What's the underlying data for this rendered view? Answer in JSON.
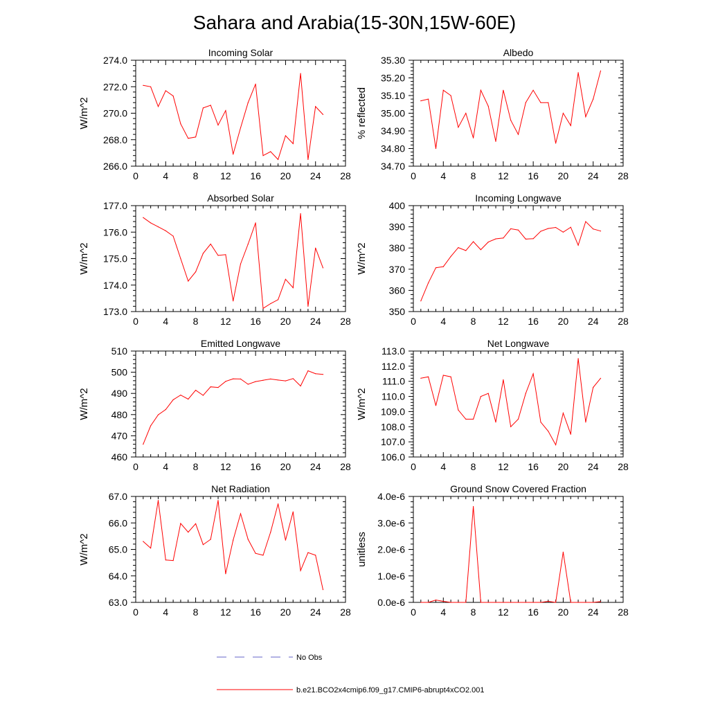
{
  "title": "Sahara and Arabia(15-30N,15W-60E)",
  "colors": {
    "model_line": "#ff0000",
    "obs_line": "#6464c8",
    "axis": "#000000"
  },
  "legend": {
    "obs_label": "No Obs",
    "model_label": "b.e21.BCO2x4cmip6.f09_g17.CMIP6-abrupt4xCO2.001"
  },
  "chart_data": [
    {
      "type": "line",
      "title": "Incoming Solar",
      "ylabel": "W/m^2",
      "xlabel": "",
      "xlim": [
        0,
        28
      ],
      "xticks": [
        0,
        4,
        8,
        12,
        16,
        20,
        24,
        28
      ],
      "xtick_labels": [
        "0",
        "4",
        "8",
        "12",
        "16",
        "20",
        "24",
        "28"
      ],
      "ylim": [
        266.0,
        274.0
      ],
      "yticks": [
        266.0,
        268.0,
        270.0,
        272.0,
        274.0
      ],
      "ytick_labels": [
        "266.0",
        "268.0",
        "270.0",
        "272.0",
        "274.0"
      ],
      "yminor": 4,
      "series": [
        {
          "name": "b.e21.BCO2x4cmip6.f09_g17.CMIP6-abrupt4xCO2.001",
          "x": [
            1,
            2,
            3,
            4,
            5,
            6,
            7,
            8,
            9,
            10,
            11,
            12,
            13,
            14,
            15,
            16,
            17,
            18,
            19,
            20,
            21,
            22,
            23,
            24,
            25
          ],
          "values": [
            272.1,
            272.0,
            270.5,
            271.7,
            271.3,
            269.2,
            268.1,
            268.2,
            270.4,
            270.6,
            269.1,
            270.2,
            266.9,
            268.9,
            270.8,
            272.2,
            266.8,
            267.1,
            266.5,
            268.3,
            267.7,
            273.0,
            266.5,
            270.5,
            269.9
          ]
        }
      ]
    },
    {
      "type": "line",
      "title": "Albedo",
      "ylabel": "% reflected",
      "xlabel": "",
      "xlim": [
        0,
        28
      ],
      "xticks": [
        0,
        4,
        8,
        12,
        16,
        20,
        24,
        28
      ],
      "xtick_labels": [
        "0",
        "4",
        "8",
        "12",
        "16",
        "20",
        "24",
        "28"
      ],
      "ylim": [
        34.7,
        35.3
      ],
      "yticks": [
        34.7,
        34.8,
        34.9,
        35.0,
        35.1,
        35.2,
        35.3
      ],
      "ytick_labels": [
        "34.70",
        "34.80",
        "34.90",
        "35.00",
        "35.10",
        "35.20",
        "35.30"
      ],
      "yminor": 4,
      "series": [
        {
          "name": "b.e21.BCO2x4cmip6.f09_g17.CMIP6-abrupt4xCO2.001",
          "x": [
            1,
            2,
            3,
            4,
            5,
            6,
            7,
            8,
            9,
            10,
            11,
            12,
            13,
            14,
            15,
            16,
            17,
            18,
            19,
            20,
            21,
            22,
            23,
            24,
            25
          ],
          "values": [
            35.07,
            35.08,
            34.8,
            35.13,
            35.1,
            34.92,
            35.0,
            34.86,
            35.13,
            35.04,
            34.84,
            35.13,
            34.96,
            34.88,
            35.06,
            35.13,
            35.06,
            35.06,
            34.83,
            35.0,
            34.93,
            35.23,
            34.98,
            35.08,
            35.24
          ]
        }
      ]
    },
    {
      "type": "line",
      "title": "Absorbed Solar",
      "ylabel": "W/m^2",
      "xlabel": "",
      "xlim": [
        0,
        28
      ],
      "xticks": [
        0,
        4,
        8,
        12,
        16,
        20,
        24,
        28
      ],
      "xtick_labels": [
        "0",
        "4",
        "8",
        "12",
        "16",
        "20",
        "24",
        "28"
      ],
      "ylim": [
        173.0,
        177.0
      ],
      "yticks": [
        173.0,
        174.0,
        175.0,
        176.0,
        177.0
      ],
      "ytick_labels": [
        "173.0",
        "174.0",
        "175.0",
        "176.0",
        "177.0"
      ],
      "yminor": 4,
      "series": [
        {
          "name": "b.e21.BCO2x4cmip6.f09_g17.CMIP6-abrupt4xCO2.001",
          "x": [
            1,
            2,
            3,
            4,
            5,
            6,
            7,
            8,
            9,
            10,
            11,
            12,
            13,
            14,
            15,
            16,
            17,
            18,
            19,
            20,
            21,
            22,
            23,
            24,
            25
          ],
          "values": [
            176.55,
            176.35,
            176.2,
            176.05,
            175.85,
            175.0,
            174.15,
            174.5,
            175.2,
            175.55,
            175.12,
            175.15,
            173.4,
            174.8,
            175.55,
            176.35,
            173.12,
            173.3,
            173.45,
            174.22,
            173.9,
            176.7,
            173.2,
            175.4,
            174.65
          ]
        }
      ]
    },
    {
      "type": "line",
      "title": "Incoming Longwave",
      "ylabel": "W/m^2",
      "xlabel": "",
      "xlim": [
        0,
        28
      ],
      "xticks": [
        0,
        4,
        8,
        12,
        16,
        20,
        24,
        28
      ],
      "xtick_labels": [
        "0",
        "4",
        "8",
        "12",
        "16",
        "20",
        "24",
        "28"
      ],
      "ylim": [
        350,
        400
      ],
      "yticks": [
        350,
        360,
        370,
        380,
        390,
        400
      ],
      "ytick_labels": [
        "350",
        "360",
        "370",
        "380",
        "390",
        "400"
      ],
      "yminor": 4,
      "series": [
        {
          "name": "b.e21.BCO2x4cmip6.f09_g17.CMIP6-abrupt4xCO2.001",
          "x": [
            1,
            2,
            3,
            4,
            5,
            6,
            7,
            8,
            9,
            10,
            11,
            12,
            13,
            14,
            15,
            16,
            17,
            18,
            19,
            20,
            21,
            22,
            23,
            24,
            25
          ],
          "values": [
            355.0,
            363.5,
            370.7,
            371.2,
            376.0,
            380.2,
            378.8,
            383.0,
            379.2,
            382.8,
            384.3,
            384.7,
            389.1,
            388.5,
            384.2,
            384.4,
            387.9,
            389.2,
            389.7,
            387.5,
            389.8,
            381.3,
            392.5,
            389.0,
            388.0
          ]
        }
      ]
    },
    {
      "type": "line",
      "title": "Emitted Longwave",
      "ylabel": "W/m^2",
      "xlabel": "",
      "xlim": [
        0,
        28
      ],
      "xticks": [
        0,
        4,
        8,
        12,
        16,
        20,
        24,
        28
      ],
      "xtick_labels": [
        "0",
        "4",
        "8",
        "12",
        "16",
        "20",
        "24",
        "28"
      ],
      "ylim": [
        460,
        510
      ],
      "yticks": [
        460,
        470,
        480,
        490,
        500,
        510
      ],
      "ytick_labels": [
        "460",
        "470",
        "480",
        "490",
        "500",
        "510"
      ],
      "yminor": 4,
      "series": [
        {
          "name": "b.e21.BCO2x4cmip6.f09_g17.CMIP6-abrupt4xCO2.001",
          "x": [
            1,
            2,
            3,
            4,
            5,
            6,
            7,
            8,
            9,
            10,
            11,
            12,
            13,
            14,
            15,
            16,
            17,
            18,
            19,
            20,
            21,
            22,
            23,
            24,
            25
          ],
          "values": [
            466.0,
            474.7,
            479.9,
            482.4,
            487.0,
            489.2,
            487.3,
            491.5,
            489.1,
            493.1,
            492.8,
            495.7,
            496.9,
            496.8,
            494.3,
            495.6,
            496.2,
            496.8,
            496.3,
            495.9,
            497.0,
            493.5,
            500.7,
            499.3,
            499.0
          ]
        }
      ]
    },
    {
      "type": "line",
      "title": "Net Longwave",
      "ylabel": "W/m^2",
      "xlabel": "",
      "xlim": [
        0,
        28
      ],
      "xticks": [
        0,
        4,
        8,
        12,
        16,
        20,
        24,
        28
      ],
      "xtick_labels": [
        "0",
        "4",
        "8",
        "12",
        "16",
        "20",
        "24",
        "28"
      ],
      "ylim": [
        106.0,
        113.0
      ],
      "yticks": [
        106.0,
        107.0,
        108.0,
        109.0,
        110.0,
        111.0,
        112.0,
        113.0
      ],
      "ytick_labels": [
        "106.0",
        "107.0",
        "108.0",
        "109.0",
        "110.0",
        "111.0",
        "112.0",
        "113.0"
      ],
      "yminor": 4,
      "series": [
        {
          "name": "b.e21.BCO2x4cmip6.f09_g17.CMIP6-abrupt4xCO2.001",
          "x": [
            1,
            2,
            3,
            4,
            5,
            6,
            7,
            8,
            9,
            10,
            11,
            12,
            13,
            14,
            15,
            16,
            17,
            18,
            19,
            20,
            21,
            22,
            23,
            24,
            25
          ],
          "values": [
            111.2,
            111.3,
            109.4,
            111.4,
            111.3,
            109.1,
            108.5,
            108.5,
            110.0,
            110.2,
            108.3,
            111.1,
            108.0,
            108.5,
            110.2,
            111.5,
            108.3,
            107.7,
            106.8,
            108.9,
            107.5,
            112.5,
            108.3,
            110.6,
            111.2
          ]
        }
      ]
    },
    {
      "type": "line",
      "title": "Net Radiation",
      "ylabel": "W/m^2",
      "xlabel": "",
      "xlim": [
        0,
        28
      ],
      "xticks": [
        0,
        4,
        8,
        12,
        16,
        20,
        24,
        28
      ],
      "xtick_labels": [
        "0",
        "4",
        "8",
        "12",
        "16",
        "20",
        "24",
        "28"
      ],
      "ylim": [
        63.0,
        67.0
      ],
      "yticks": [
        63.0,
        64.0,
        65.0,
        66.0,
        67.0
      ],
      "ytick_labels": [
        "63.0",
        "64.0",
        "65.0",
        "66.0",
        "67.0"
      ],
      "yminor": 4,
      "series": [
        {
          "name": "b.e21.BCO2x4cmip6.f09_g17.CMIP6-abrupt4xCO2.001",
          "x": [
            1,
            2,
            3,
            4,
            5,
            6,
            7,
            8,
            9,
            10,
            11,
            12,
            13,
            14,
            15,
            16,
            17,
            18,
            19,
            20,
            21,
            22,
            23,
            24,
            25
          ],
          "values": [
            65.3,
            65.05,
            66.85,
            64.6,
            64.58,
            65.98,
            65.65,
            65.97,
            65.18,
            65.38,
            66.85,
            64.08,
            65.35,
            66.35,
            65.38,
            64.85,
            64.78,
            65.65,
            66.72,
            65.35,
            66.42,
            64.2,
            64.88,
            64.78,
            63.48
          ]
        }
      ]
    },
    {
      "type": "line",
      "title": "Ground Snow Covered Fraction",
      "ylabel": "unitless",
      "xlabel": "",
      "xlim": [
        0,
        28
      ],
      "xticks": [
        0,
        4,
        8,
        12,
        16,
        20,
        24,
        28
      ],
      "xtick_labels": [
        "0",
        "4",
        "8",
        "12",
        "16",
        "20",
        "24",
        "28"
      ],
      "ylim": [
        0.0,
        4.0
      ],
      "yticks": [
        0.0,
        1.0,
        2.0,
        3.0,
        4.0
      ],
      "ytick_labels": [
        "0.0e-6",
        "1.0e-6",
        "2.0e-6",
        "3.0e-6",
        "4.0e-6"
      ],
      "yunits_note": "values in units of 1e-6",
      "yminor": 4,
      "series": [
        {
          "name": "b.e21.BCO2x4cmip6.f09_g17.CMIP6-abrupt4xCO2.001",
          "x": [
            1,
            2,
            3,
            4,
            5,
            6,
            7,
            8,
            9,
            10,
            11,
            12,
            13,
            14,
            15,
            16,
            17,
            18,
            19,
            20,
            21,
            22,
            23,
            24,
            25
          ],
          "values": [
            0.0,
            0.0,
            0.09,
            0.04,
            0.0,
            0.0,
            0.0,
            3.62,
            0.0,
            0.0,
            0.0,
            0.0,
            0.0,
            0.0,
            0.0,
            0.0,
            0.0,
            0.04,
            0.0,
            1.9,
            0.0,
            0.0,
            0.0,
            0.0,
            0.03
          ]
        }
      ]
    }
  ]
}
